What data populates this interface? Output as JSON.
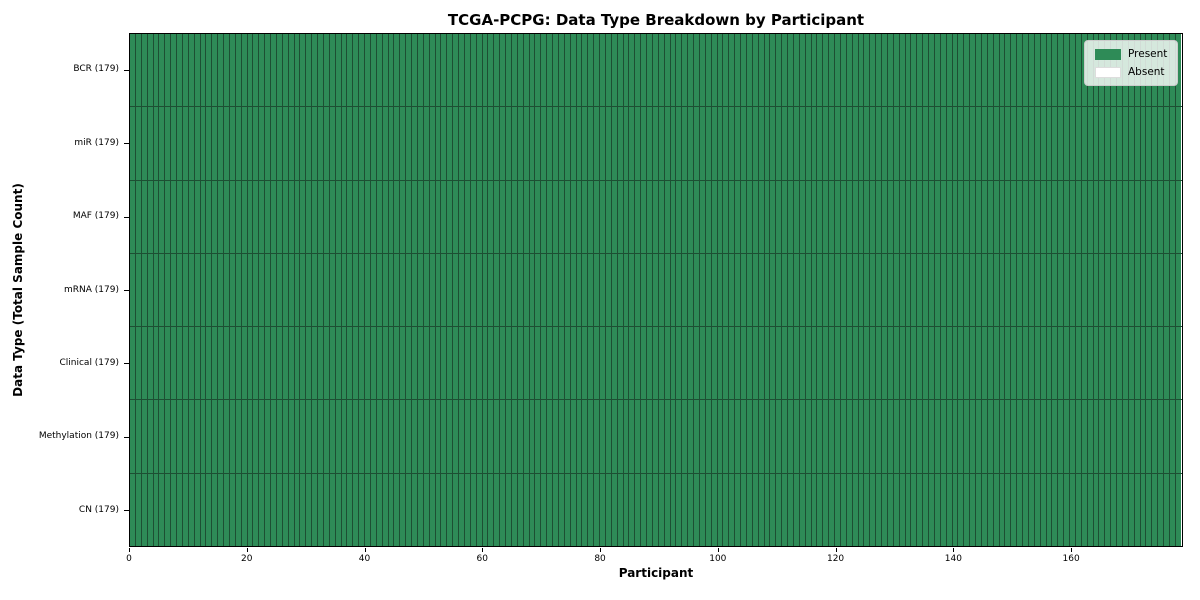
{
  "chart_data": {
    "type": "heatmap",
    "title": "TCGA-PCPG: Data Type Breakdown by Participant",
    "xlabel": "Participant",
    "ylabel": "Data Type (Total Sample Count)",
    "xlim": [
      0,
      179
    ],
    "x_ticks": [
      0,
      20,
      40,
      60,
      80,
      100,
      120,
      140,
      160
    ],
    "n_participants": 179,
    "rows": [
      {
        "label": "BCR (179)",
        "data_type": "BCR",
        "total_samples": 179,
        "present_count": 179,
        "absent_count": 0
      },
      {
        "label": "miR (179)",
        "data_type": "miR",
        "total_samples": 179,
        "present_count": 179,
        "absent_count": 0
      },
      {
        "label": "MAF (179)",
        "data_type": "MAF",
        "total_samples": 179,
        "present_count": 179,
        "absent_count": 0
      },
      {
        "label": "mRNA (179)",
        "data_type": "mRNA",
        "total_samples": 179,
        "present_count": 179,
        "absent_count": 0
      },
      {
        "label": "Clinical (179)",
        "data_type": "Clinical",
        "total_samples": 179,
        "present_count": 179,
        "absent_count": 0
      },
      {
        "label": "Methylation (179)",
        "data_type": "Methylation",
        "total_samples": 179,
        "present_count": 179,
        "absent_count": 0
      },
      {
        "label": "CN (179)",
        "data_type": "CN",
        "total_samples": 179,
        "present_count": 179,
        "absent_count": 0
      }
    ],
    "legend": [
      {
        "label": "Present",
        "color": "#2e8b57"
      },
      {
        "label": "Absent",
        "color": "#ffffff"
      }
    ],
    "colors": {
      "present": "#2e8b57",
      "absent": "#ffffff",
      "cell_edge": "#1d4f33",
      "frame": "#000000"
    },
    "legend_position": "upper right",
    "grid": false
  }
}
